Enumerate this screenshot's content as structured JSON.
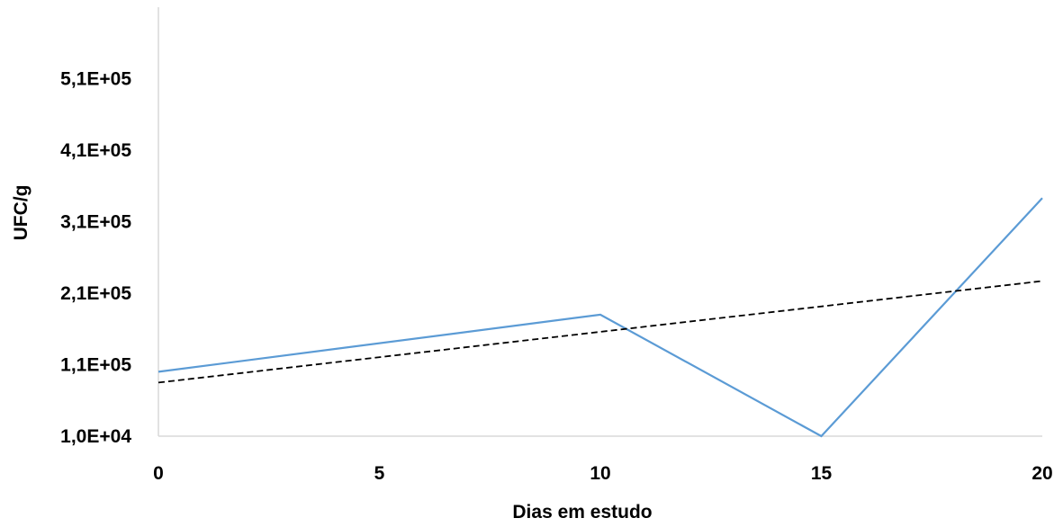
{
  "chart_data": {
    "type": "line",
    "title": "",
    "xlabel": "Dias em estudo",
    "ylabel": "UFC/g",
    "xlim": [
      0,
      20
    ],
    "ylim": [
      10000,
      610000
    ],
    "x_ticks": [
      0,
      5,
      10,
      15,
      20
    ],
    "x_tick_labels": [
      "0",
      "5",
      "10",
      "15",
      "20"
    ],
    "y_ticks": [
      10000,
      110000,
      210000,
      310000,
      410000,
      510000
    ],
    "y_tick_labels": [
      "1,0E+04",
      "1,1E+05",
      "2,1E+05",
      "3,1E+05",
      "4,1E+05",
      "5,1E+05"
    ],
    "grid": false,
    "legend": "none",
    "series": [
      {
        "style": "solid",
        "color": "#5b9bd5",
        "x": [
          0,
          10,
          15,
          20
        ],
        "y": [
          100000,
          180000,
          10000,
          343000
        ]
      },
      {
        "style": "dashed",
        "color": "#000000",
        "trendline": "linear",
        "x": [
          0,
          20
        ],
        "y": [
          85000,
          227000
        ]
      }
    ]
  }
}
